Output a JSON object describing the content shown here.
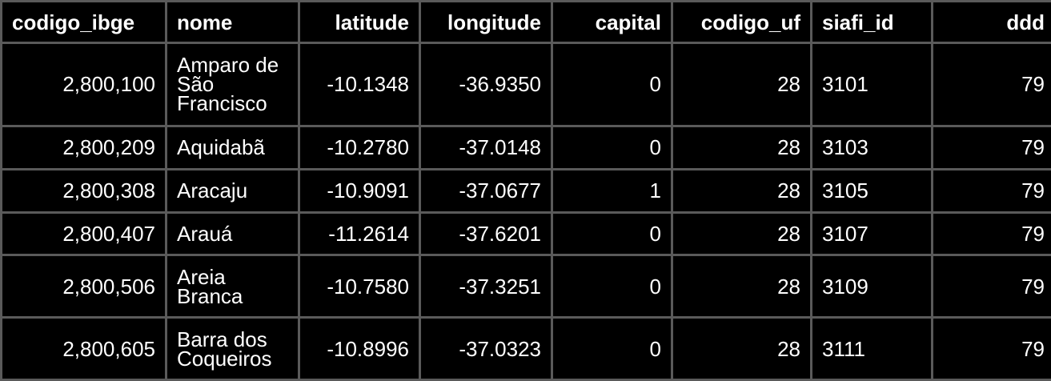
{
  "table": {
    "headers": [
      "codigo_ibge",
      "nome",
      "latitude",
      "longitude",
      "capital",
      "codigo_uf",
      "siafi_id",
      "ddd"
    ],
    "rows": [
      [
        "2,800,100",
        "Amparo de São Francisco",
        "-10.1348",
        "-36.9350",
        "0",
        "28",
        "3101",
        "79"
      ],
      [
        "2,800,209",
        "Aquidabã",
        "-10.2780",
        "-37.0148",
        "0",
        "28",
        "3103",
        "79"
      ],
      [
        "2,800,308",
        "Aracaju",
        "-10.9091",
        "-37.0677",
        "1",
        "28",
        "3105",
        "79"
      ],
      [
        "2,800,407",
        "Arauá",
        "-11.2614",
        "-37.6201",
        "0",
        "28",
        "3107",
        "79"
      ],
      [
        "2,800,506",
        "Areia Branca",
        "-10.7580",
        "-37.3251",
        "0",
        "28",
        "3109",
        "79"
      ],
      [
        "2,800,605",
        "Barra dos Coqueiros",
        "-10.8996",
        "-37.0323",
        "0",
        "28",
        "3111",
        "79"
      ]
    ]
  }
}
